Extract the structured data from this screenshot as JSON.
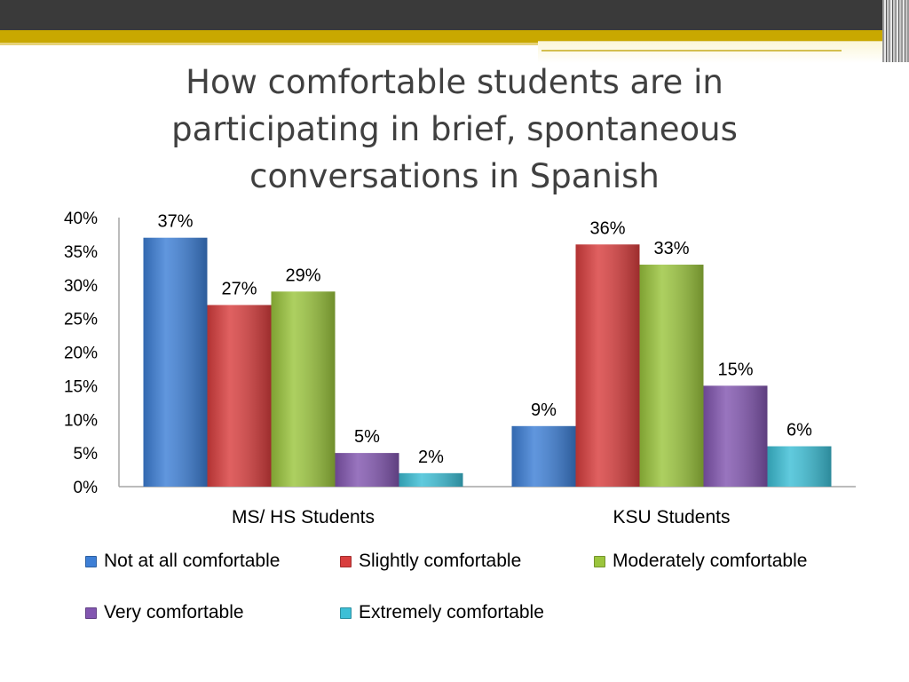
{
  "slide": {
    "title_lines": [
      "How comfortable students are in",
      "participating in brief, spontaneous",
      "conversations in Spanish"
    ]
  },
  "chart_data": {
    "type": "bar",
    "categories": [
      "MS/ HS Students",
      "KSU Students"
    ],
    "series": [
      {
        "name": "Not at all comfortable",
        "values": [
          37,
          9
        ],
        "labels": [
          "37%",
          "9%"
        ],
        "color": "#3d7fd6"
      },
      {
        "name": "Slightly comfortable",
        "values": [
          27,
          36
        ],
        "labels": [
          "27%",
          "36%"
        ],
        "color": "#d93e3e"
      },
      {
        "name": "Moderately comfortable",
        "values": [
          29,
          33
        ],
        "labels": [
          "29%",
          "33%"
        ],
        "color": "#9bc53d"
      },
      {
        "name": "Very comfortable",
        "values": [
          5,
          15
        ],
        "labels": [
          "5%",
          "15%"
        ],
        "color": "#8256b0"
      },
      {
        "name": "Extremely comfortable",
        "values": [
          2,
          6
        ],
        "labels": [
          "2%",
          "6%"
        ],
        "color": "#3dbfd6"
      }
    ],
    "yticks": [
      "0%",
      "5%",
      "10%",
      "15%",
      "20%",
      "25%",
      "30%",
      "35%",
      "40%"
    ],
    "ylim": [
      0,
      40
    ],
    "xlabel": "",
    "ylabel": "",
    "grid": false,
    "legend_position": "bottom"
  }
}
